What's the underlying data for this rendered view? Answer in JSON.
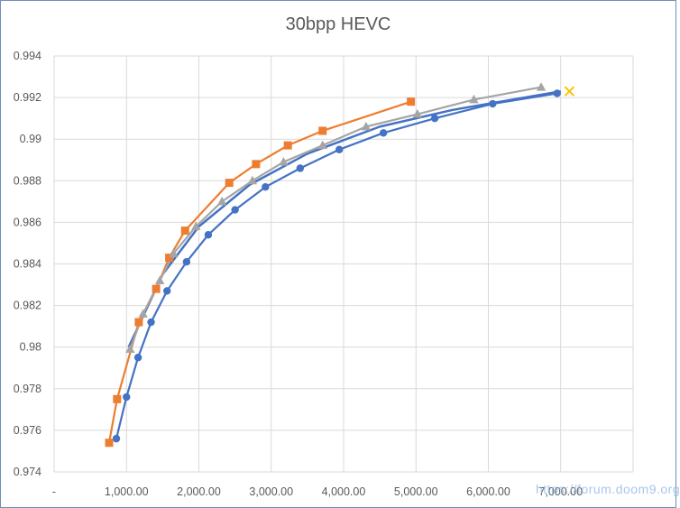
{
  "chart_data": {
    "type": "scatter",
    "title": "30bpp HEVC",
    "xlabel": "",
    "ylabel": "",
    "xlim": [
      0,
      8000
    ],
    "ylim": [
      0.974,
      0.994
    ],
    "x_ticks": [
      "-",
      "1,000.00",
      "2,000.00",
      "3,000.00",
      "4,000.00",
      "5,000.00",
      "6,000.00",
      "7,000.00"
    ],
    "y_ticks": [
      "0.974",
      "0.976",
      "0.978",
      "0.98",
      "0.982",
      "0.984",
      "0.986",
      "0.988",
      "0.99",
      "0.992",
      "0.994"
    ],
    "grid": true,
    "legend": "none",
    "series": [
      {
        "color": "#4472c4",
        "marker": "circle",
        "x": [
          860,
          1000,
          1160,
          1340,
          1560,
          1830,
          2130,
          2500,
          2920,
          3400,
          3940,
          4550,
          5260,
          6060,
          6950
        ],
        "y": [
          0.9756,
          0.9776,
          0.9795,
          0.9812,
          0.9827,
          0.9841,
          0.9854,
          0.9866,
          0.9877,
          0.9886,
          0.9895,
          0.9903,
          0.991,
          0.9917,
          0.9922
        ]
      },
      {
        "color": "#ed7d31",
        "marker": "square",
        "x": [
          760,
          870,
          1170,
          1410,
          1590,
          1810,
          2420,
          2790,
          3230,
          3710,
          4930
        ],
        "y": [
          0.9754,
          0.9775,
          0.9812,
          0.9828,
          0.9843,
          0.9856,
          0.9879,
          0.9888,
          0.9897,
          0.9904,
          0.9918
        ]
      },
      {
        "color": "#a5a5a5",
        "marker": "triangle",
        "x": [
          1050,
          1230,
          1460,
          1650,
          1960,
          2320,
          2740,
          3170,
          3710,
          4310,
          5020,
          5800,
          6730
        ],
        "y": [
          0.9799,
          0.9816,
          0.9832,
          0.9845,
          0.9858,
          0.987,
          0.988,
          0.9889,
          0.9897,
          0.9906,
          0.9912,
          0.9919,
          0.9925
        ]
      },
      {
        "color": "#ffc000",
        "marker": "x",
        "x": [
          7120
        ],
        "y": [
          0.9923
        ]
      }
    ],
    "trendlines": [
      {
        "color": "#4472c4",
        "x": [
          1030,
          1500,
          2000,
          2700,
          3500,
          4500,
          5500,
          6500,
          7000
        ],
        "y": [
          0.98,
          0.9835,
          0.9858,
          0.9878,
          0.9893,
          0.9906,
          0.9914,
          0.992,
          0.9923
        ]
      }
    ]
  },
  "watermark": "https://forum.doom9.org"
}
